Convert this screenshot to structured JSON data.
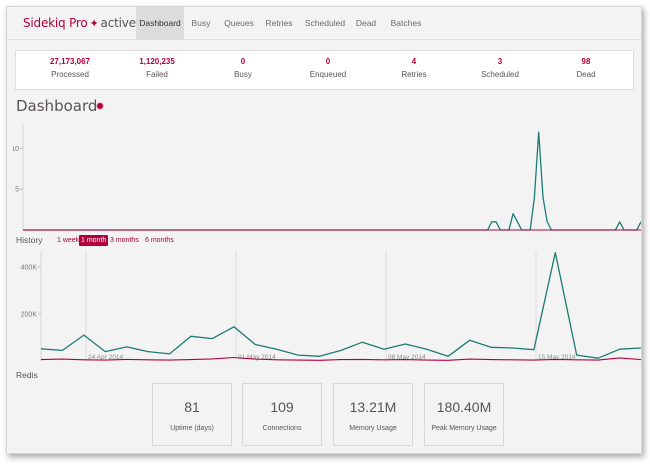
{
  "brand": {
    "name": "Sidekiq Pro",
    "status": "active"
  },
  "nav": {
    "items": [
      {
        "label": "Dashboard"
      },
      {
        "label": "Busy"
      },
      {
        "label": "Queues"
      },
      {
        "label": "Retries"
      },
      {
        "label": "Scheduled"
      },
      {
        "label": "Dead"
      },
      {
        "label": "Batches"
      }
    ],
    "active": "Dashboard"
  },
  "summary": [
    {
      "count": "27,173,067",
      "label": "Processed"
    },
    {
      "count": "1,120,235",
      "label": "Failed"
    },
    {
      "count": "0",
      "label": "Busy"
    },
    {
      "count": "0",
      "label": "Enqueued"
    },
    {
      "count": "4",
      "label": "Retries"
    },
    {
      "count": "3",
      "label": "Scheduled"
    },
    {
      "count": "98",
      "label": "Dead"
    }
  ],
  "dashboard": {
    "title": "Dashboard"
  },
  "history": {
    "title": "History",
    "ranges": [
      "1 week",
      "1 month",
      "3 months",
      "6 months"
    ],
    "active_range": "1 month"
  },
  "redis": {
    "title": "Redis",
    "stats": [
      {
        "value": "81",
        "label": "Uptime (days)"
      },
      {
        "value": "109",
        "label": "Connections"
      },
      {
        "value": "13.21M",
        "label": "Memory Usage"
      },
      {
        "value": "180.40M",
        "label": "Peak Memory Usage"
      }
    ]
  },
  "colors": {
    "processed": "#1e7b74",
    "failed": "#b1003e",
    "accent": "#b1003e"
  },
  "chart_data": [
    {
      "type": "line",
      "name": "realtime",
      "y_ticks": [
        "5",
        "10"
      ],
      "ylim": [
        0,
        12.5
      ],
      "series": [
        {
          "color": "#1e7b74",
          "values": [
            0,
            0,
            0,
            0,
            0,
            0,
            0,
            0,
            0,
            0,
            0,
            0,
            0,
            0,
            0,
            0,
            0,
            0,
            0,
            0,
            0,
            0,
            0,
            0,
            0,
            0,
            0,
            0,
            0,
            0,
            0,
            0,
            0,
            0,
            0,
            0,
            0,
            0,
            0,
            0,
            0,
            0,
            0,
            0,
            0,
            0,
            0,
            0,
            0,
            0,
            0,
            0,
            0,
            0,
            0,
            0,
            0,
            0,
            0,
            0,
            0,
            0,
            0,
            0,
            0,
            0,
            0,
            0,
            0,
            0,
            0,
            0,
            0,
            0,
            0,
            0,
            0,
            0,
            0,
            0,
            0,
            0,
            0,
            0,
            0,
            0,
            0,
            0,
            0,
            0,
            0,
            0,
            0,
            0,
            0,
            0,
            0,
            0,
            0,
            0,
            0,
            0,
            0,
            0,
            0,
            0,
            0,
            0,
            0,
            0,
            1,
            1,
            0,
            0,
            0,
            2,
            1,
            0,
            0,
            0,
            4,
            12,
            4,
            1,
            0,
            0,
            0,
            0,
            0,
            0,
            0,
            0,
            0,
            0,
            0,
            0,
            0,
            0,
            0,
            0,
            1,
            0,
            0,
            0,
            0,
            1
          ]
        },
        {
          "color": "#b1003e",
          "values": []
        }
      ]
    },
    {
      "type": "line",
      "name": "history",
      "x_labels": [
        "24 Apr 2014",
        "01 May 2014",
        "08 May 2014",
        "15 May 2014"
      ],
      "y_ticks": [
        "200K",
        "400K"
      ],
      "ylim": [
        0,
        450000
      ],
      "series": [
        {
          "color": "#1e7b74",
          "values": [
            52000,
            45000,
            110000,
            40000,
            60000,
            40000,
            30000,
            105000,
            95000,
            145000,
            70000,
            50000,
            25000,
            20000,
            45000,
            80000,
            50000,
            72000,
            50000,
            20000,
            88000,
            58000,
            55000,
            48000,
            460000,
            25000,
            12000,
            50000,
            55000
          ]
        },
        {
          "color": "#b1003e",
          "values": [
            6000,
            8000,
            5000,
            4000,
            7000,
            5000,
            4000,
            6000,
            9000,
            15000,
            8000,
            5000,
            4000,
            3000,
            6000,
            7000,
            5000,
            6000,
            4000,
            3000,
            8000,
            6000,
            5000,
            4000,
            7000,
            5000,
            4000,
            13000,
            6000
          ]
        }
      ]
    }
  ]
}
